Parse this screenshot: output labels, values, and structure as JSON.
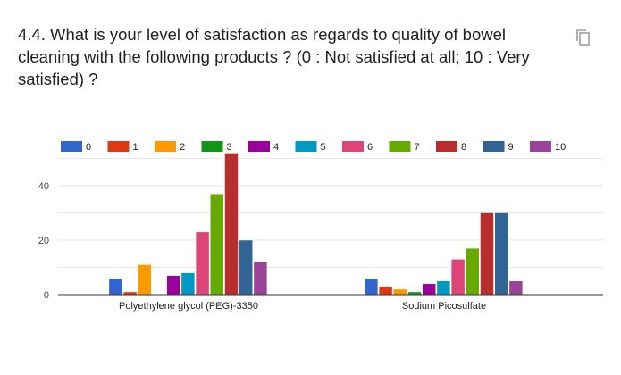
{
  "title": "4.4. What is your level of satisfaction as regards to quality of bowel cleaning with the following products ? (0 : Not satisfied at all; 10 : Very satisfied) ?",
  "chart_data": {
    "type": "bar",
    "title": "",
    "categories": [
      "Polyethylene glycol (PEG)-3350",
      "Sodium Picosulfate"
    ],
    "series": [
      {
        "name": "0",
        "color": "#3366cc",
        "values": [
          6,
          6
        ]
      },
      {
        "name": "1",
        "color": "#dc3912",
        "values": [
          1,
          3
        ]
      },
      {
        "name": "2",
        "color": "#ff9900",
        "values": [
          11,
          2
        ]
      },
      {
        "name": "3",
        "color": "#109618",
        "values": [
          0,
          1
        ]
      },
      {
        "name": "4",
        "color": "#990099",
        "values": [
          7,
          4
        ]
      },
      {
        "name": "5",
        "color": "#0099c6",
        "values": [
          8,
          5
        ]
      },
      {
        "name": "6",
        "color": "#dd4477",
        "values": [
          23,
          13
        ]
      },
      {
        "name": "7",
        "color": "#66aa00",
        "values": [
          37,
          17
        ]
      },
      {
        "name": "8",
        "color": "#b82e2e",
        "values": [
          52,
          30
        ]
      },
      {
        "name": "9",
        "color": "#316395",
        "values": [
          20,
          30
        ]
      },
      {
        "name": "10",
        "color": "#994499",
        "values": [
          12,
          5
        ]
      }
    ],
    "yticks": [
      0,
      20,
      40
    ],
    "ylim": [
      0,
      52
    ],
    "legend": "top",
    "grid": true
  }
}
